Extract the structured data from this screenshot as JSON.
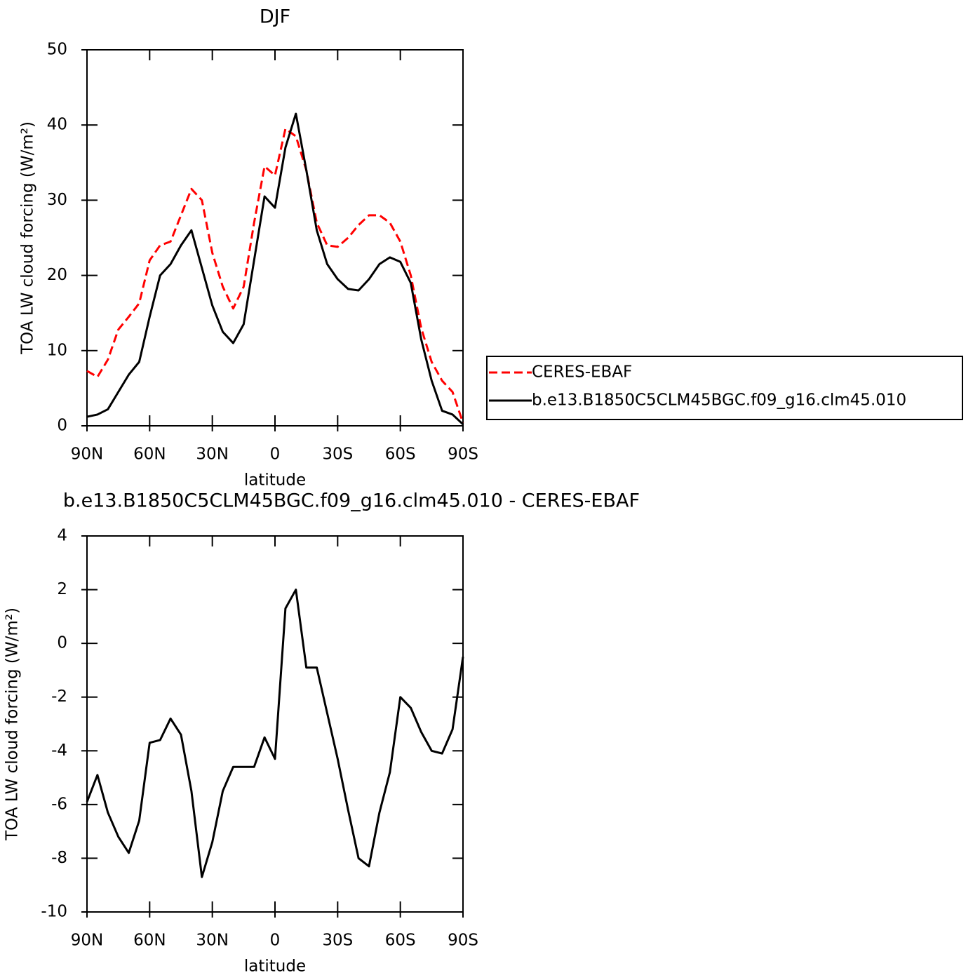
{
  "chart_data": [
    {
      "type": "line",
      "title": "DJF",
      "xlabel": "latitude",
      "ylabel": "TOA LW cloud forcing (W/m²)",
      "x": [
        90,
        85,
        80,
        75,
        70,
        65,
        60,
        55,
        50,
        45,
        40,
        35,
        30,
        25,
        20,
        15,
        10,
        5,
        0,
        -5,
        -10,
        -15,
        -20,
        -25,
        -30,
        -35,
        -40,
        -45,
        -50,
        -55,
        -60,
        -65,
        -70,
        -75,
        -80,
        -85,
        -90
      ],
      "xlim": [
        90,
        -90
      ],
      "xticks": [
        {
          "value": 90,
          "label": "90N"
        },
        {
          "value": 60,
          "label": "60N"
        },
        {
          "value": 30,
          "label": "30N"
        },
        0,
        {
          "value": -30,
          "label": "30S"
        },
        {
          "value": -60,
          "label": "60S"
        },
        {
          "value": -90,
          "label": "90S"
        }
      ],
      "ylim": [
        0,
        50
      ],
      "yticks": [
        0,
        10,
        20,
        30,
        40,
        50
      ],
      "legend": "right",
      "series": [
        {
          "name": "CERES-EBAF",
          "color": "#ff0000",
          "line_style": "dashed",
          "values": [
            7.3,
            6.5,
            8.8,
            12.8,
            14.5,
            16.3,
            22,
            24,
            24.5,
            28,
            31.5,
            30,
            23,
            18.5,
            15.6,
            18.5,
            27,
            34.5,
            33.3,
            39.5,
            38.5,
            34,
            27,
            24,
            23.8,
            25,
            26.7,
            28,
            28,
            27,
            24.5,
            20,
            13,
            8.5,
            6,
            4.5,
            0.4
          ]
        },
        {
          "name": "b.e13.B1850C5CLM45BGC.f09_g16.clm45.010",
          "color": "#000000",
          "line_style": "solid",
          "values": [
            1.2,
            1.5,
            2.2,
            4.5,
            6.8,
            8.5,
            14.5,
            20,
            21.5,
            24,
            26,
            21,
            16,
            12.5,
            11,
            13.5,
            22,
            30.5,
            29,
            37,
            41.5,
            34,
            26,
            21.5,
            19.5,
            18.2,
            18,
            19.5,
            21.5,
            22.4,
            21.8,
            19,
            11.5,
            6,
            2,
            1.5,
            0.2
          ]
        }
      ]
    },
    {
      "type": "line",
      "title": "b.e13.B1850C5CLM45BGC.f09_g16.clm45.010 - CERES-EBAF",
      "xlabel": "latitude",
      "ylabel": "TOA LW cloud forcing (W/m²)",
      "x": [
        90,
        85,
        80,
        75,
        70,
        65,
        60,
        55,
        50,
        45,
        40,
        35,
        30,
        25,
        20,
        15,
        10,
        5,
        0,
        -5,
        -10,
        -15,
        -20,
        -25,
        -30,
        -35,
        -40,
        -45,
        -50,
        -55,
        -60,
        -65,
        -70,
        -75,
        -80,
        -85,
        -90
      ],
      "xlim": [
        90,
        -90
      ],
      "xticks": [
        {
          "value": 90,
          "label": "90N"
        },
        {
          "value": 60,
          "label": "60N"
        },
        {
          "value": 30,
          "label": "30N"
        },
        0,
        {
          "value": -30,
          "label": "30S"
        },
        {
          "value": -60,
          "label": "60S"
        },
        {
          "value": -90,
          "label": "90S"
        }
      ],
      "ylim": [
        -10,
        4
      ],
      "yticks": [
        -10,
        -8,
        -6,
        -4,
        -2,
        0,
        2,
        4
      ],
      "series": [
        {
          "color": "#000000",
          "line_style": "solid",
          "values": [
            -5.9,
            -4.9,
            -6.3,
            -7.2,
            -7.8,
            -6.6,
            -3.7,
            -3.6,
            -2.8,
            -3.4,
            -5.5,
            -8.7,
            -7.4,
            -5.5,
            -4.6,
            -4.6,
            -4.6,
            -3.5,
            -4.3,
            1.3,
            2.0,
            -0.9,
            -0.9,
            -2.6,
            -4.3,
            -6.2,
            -8.0,
            -8.3,
            -6.3,
            -4.8,
            -2.0,
            -2.4,
            -3.3,
            -4.0,
            -4.1,
            -3.2,
            -0.5
          ]
        }
      ]
    }
  ]
}
